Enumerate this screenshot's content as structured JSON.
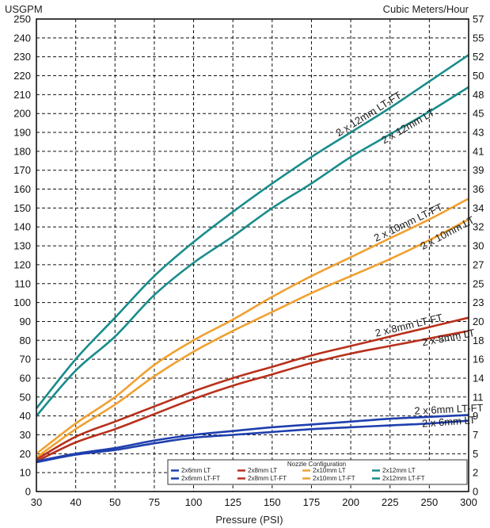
{
  "chart_data": {
    "type": "line",
    "left_axis_title": "USGPM",
    "right_axis_title": "Cubic Meters/Hour",
    "xlabel": "Pressure (PSI)",
    "x_ticks": [
      "30",
      "40",
      "50",
      "75",
      "100",
      "125",
      "150",
      "175",
      "200",
      "225",
      "250",
      "300"
    ],
    "x_tick_values": [
      30,
      40,
      50,
      75,
      100,
      125,
      150,
      175,
      200,
      225,
      250,
      300
    ],
    "y_ticks": [
      "0",
      "10",
      "20",
      "30",
      "40",
      "50",
      "60",
      "70",
      "80",
      "90",
      "100",
      "110",
      "120",
      "130",
      "140",
      "150",
      "160",
      "170",
      "180",
      "190",
      "200",
      "210",
      "220",
      "230",
      "240",
      "250"
    ],
    "y_tick_values": [
      0,
      10,
      20,
      30,
      40,
      50,
      60,
      70,
      80,
      90,
      100,
      110,
      120,
      130,
      140,
      150,
      160,
      170,
      180,
      190,
      200,
      210,
      220,
      230,
      240,
      250
    ],
    "right_ticks": [
      "0",
      "2",
      "5",
      "7",
      "9",
      "11",
      "14",
      "16",
      "18",
      "20",
      "23",
      "25",
      "27",
      "30",
      "32",
      "34",
      "36",
      "39",
      "41",
      "43",
      "45",
      "48",
      "50",
      "52",
      "55",
      "57"
    ],
    "ylim": [
      0,
      250
    ],
    "grid": true,
    "legend": {
      "title": "Nozzle Configuration",
      "placement": "bottom-right"
    },
    "series": [
      {
        "name": "2x6mm LT",
        "label": "2 x 6mm LT",
        "color": "#1f3fae",
        "x": [
          30,
          40,
          50,
          75,
          100,
          125,
          150,
          175,
          200,
          225,
          250,
          300
        ],
        "values": [
          15.5,
          19.5,
          22,
          25.5,
          28.5,
          30,
          31.5,
          33,
          34,
          35,
          36,
          37.5
        ]
      },
      {
        "name": "2x8mm LT",
        "label": "2 x 8mm LT",
        "color": "#b8311c",
        "x": [
          30,
          40,
          50,
          75,
          100,
          125,
          150,
          175,
          200,
          225,
          250,
          300
        ],
        "values": [
          16,
          26,
          33,
          41,
          49,
          56,
          62,
          68,
          73,
          77,
          81,
          85
        ]
      },
      {
        "name": "2x10mm LT",
        "label": "2 x 10mm LT",
        "color": "#f0a030",
        "x": [
          30,
          40,
          50,
          75,
          100,
          125,
          150,
          175,
          200,
          225,
          250,
          300
        ],
        "values": [
          18,
          33,
          46,
          61,
          74,
          85,
          95,
          105,
          114,
          123,
          133,
          144
        ]
      },
      {
        "name": "2x12mm LT",
        "label": "2 x 12mm LT",
        "color": "#1a8c8c",
        "x": [
          30,
          40,
          50,
          75,
          100,
          125,
          150,
          175,
          200,
          225,
          250,
          300
        ],
        "values": [
          40,
          64,
          82,
          104,
          121,
          135,
          150,
          163,
          177,
          189,
          201,
          214
        ]
      },
      {
        "name": "2x6mm LT-FT",
        "label": "2 x 6mm LT-FT",
        "color": "#1f3fae",
        "x": [
          30,
          40,
          50,
          75,
          100,
          125,
          150,
          175,
          200,
          225,
          250,
          300
        ],
        "values": [
          16,
          20,
          23,
          27,
          30,
          32,
          34,
          35.5,
          37,
          38.5,
          39.5,
          40.5
        ]
      },
      {
        "name": "2x8mm LT-FT",
        "label": "2 x 8mm LT-FT",
        "color": "#b8311c",
        "x": [
          30,
          40,
          50,
          75,
          100,
          125,
          150,
          175,
          200,
          225,
          250,
          300
        ],
        "values": [
          17,
          29,
          37,
          45,
          53,
          60,
          66,
          72,
          77,
          82,
          87,
          92
        ]
      },
      {
        "name": "2x10mm LT-FT",
        "label": "2 x 10mm LT-FT",
        "color": "#f0a030",
        "x": [
          30,
          40,
          50,
          75,
          100,
          125,
          150,
          175,
          200,
          225,
          250,
          300
        ],
        "values": [
          20,
          36,
          50,
          67,
          80,
          91,
          103,
          114,
          124,
          134,
          144,
          155
        ]
      },
      {
        "name": "2x12mm LT-FT",
        "label": "2 x 12mm LT-FT",
        "color": "#1a8c8c",
        "x": [
          30,
          40,
          50,
          75,
          100,
          125,
          150,
          175,
          200,
          225,
          250,
          300
        ],
        "values": [
          44,
          70,
          92,
          114,
          132,
          148,
          163,
          177,
          190,
          203,
          217,
          231
        ]
      }
    ]
  }
}
